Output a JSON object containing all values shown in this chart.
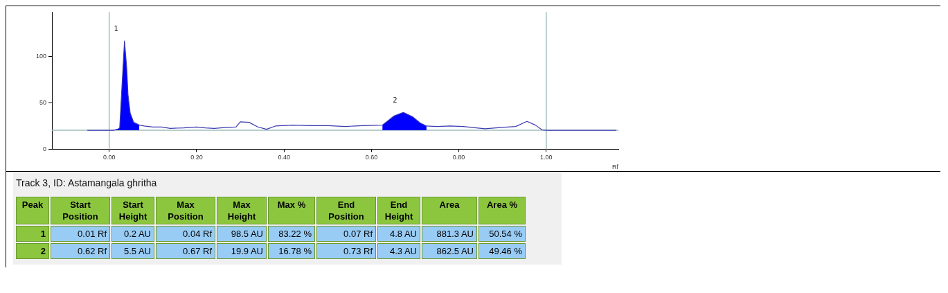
{
  "chart_data": [
    {
      "type": "line",
      "xlabel": "Rf",
      "xlim": [
        -0.131,
        1.165
      ],
      "ylim": [
        0,
        148
      ],
      "xticks": [
        {
          "value": 0,
          "label": "0.00"
        },
        {
          "value": 0.2,
          "label": "0.20"
        },
        {
          "value": 0.4,
          "label": "0.40"
        },
        {
          "value": 0.6,
          "label": "0.60"
        },
        {
          "value": 0.8,
          "label": "0.80"
        },
        {
          "value": 1,
          "label": "1.00"
        }
      ],
      "yticks": [
        0,
        50,
        100
      ],
      "grid": false,
      "legend": false,
      "marker": "none",
      "series": [
        {
          "type": "line",
          "color": "#3a3ab0",
          "x": [
            -0.05,
            0,
            0.01,
            0.02,
            0.024,
            0.029,
            0.035,
            0.04,
            0.043,
            0.048,
            0.056,
            0.069,
            0.08,
            0.1,
            0.12,
            0.14,
            0.17,
            0.2,
            0.22,
            0.24,
            0.27,
            0.29,
            0.3,
            0.32,
            0.34,
            0.36,
            0.38,
            0.42,
            0.46,
            0.5,
            0.54,
            0.58,
            0.625,
            0.652,
            0.673,
            0.694,
            0.711,
            0.726,
            0.75,
            0.78,
            0.81,
            0.84,
            0.86,
            0.9,
            0.93,
            0.956,
            0.975,
            0.99,
            1,
            1.16
          ],
          "values": [
            20.4,
            20.4,
            20.4,
            21.8,
            23,
            66,
            116.8,
            88,
            59,
            39,
            29,
            26,
            25,
            24,
            24,
            22.5,
            23,
            24,
            23,
            22.5,
            23.5,
            24,
            29.5,
            29,
            24,
            21.5,
            25,
            26,
            25.5,
            25.5,
            24.5,
            25.5,
            26,
            36,
            39.7,
            35,
            28.5,
            25,
            24.5,
            25,
            24.5,
            23,
            22,
            23.5,
            24.5,
            30,
            26,
            21,
            20.4,
            20.4
          ]
        },
        {
          "type": "area",
          "color": "#0000ff",
          "x": [
            0.01,
            0.02,
            0.024,
            0.029,
            0.035,
            0.04,
            0.043,
            0.048,
            0.056,
            0.069
          ],
          "values": [
            20.4,
            21.8,
            23,
            66,
            116.8,
            88,
            59,
            39,
            29,
            26
          ]
        },
        {
          "type": "area",
          "color": "#0000ff",
          "x": [
            0.625,
            0.652,
            0.673,
            0.694,
            0.711,
            0.726
          ],
          "values": [
            26,
            36,
            39.7,
            35,
            28.5,
            25
          ]
        }
      ],
      "ref_lines": [
        {
          "axis": "x",
          "value": 0,
          "color": "#9fbcbc"
        },
        {
          "axis": "x",
          "value": 1,
          "color": "#9fbcbc"
        },
        {
          "axis": "y",
          "value": 20.4,
          "color": "#9fbcbc"
        }
      ],
      "annotations": [
        "1",
        "2"
      ]
    },
    {
      "type": "other",
      "title": "Track 3, ID: Astamangala ghritha",
      "annotations": [
        "Peak",
        "Start Position",
        "Start Height",
        "Max Position",
        "Max Height",
        "Max %",
        "End Position",
        "End Height",
        "Area",
        "Area %",
        "1",
        "0.01 Rf",
        "0.2 AU",
        "0.04 Rf",
        "98.5 AU",
        "83.22 %",
        "0.07 Rf",
        "4.8 AU",
        "881.3 AU",
        "50.54 %",
        "2",
        "0.62 Rf",
        "5.5 AU",
        "0.67 Rf",
        "19.9 AU",
        "16.78 %",
        "0.73 Rf",
        "4.3 AU",
        "862.5 AU",
        "49.46 %"
      ]
    }
  ]
}
